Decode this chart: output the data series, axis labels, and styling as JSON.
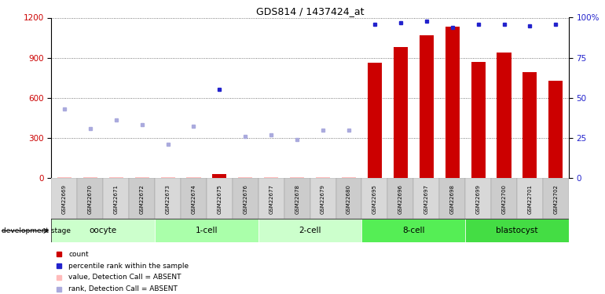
{
  "title": "GDS814 / 1437424_at",
  "samples": [
    "GSM22669",
    "GSM22670",
    "GSM22671",
    "GSM22672",
    "GSM22673",
    "GSM22674",
    "GSM22675",
    "GSM22676",
    "GSM22677",
    "GSM22678",
    "GSM22679",
    "GSM22680",
    "GSM22695",
    "GSM22696",
    "GSM22697",
    "GSM22698",
    "GSM22699",
    "GSM22700",
    "GSM22701",
    "GSM22702"
  ],
  "count_values": [
    5,
    5,
    5,
    5,
    5,
    5,
    30,
    5,
    5,
    5,
    5,
    5,
    860,
    980,
    1070,
    1130,
    870,
    940,
    790,
    730
  ],
  "count_absent": [
    true,
    true,
    true,
    true,
    true,
    true,
    false,
    true,
    true,
    true,
    true,
    true,
    false,
    false,
    false,
    false,
    false,
    false,
    false,
    false
  ],
  "rank_values": [
    43,
    31,
    36,
    33,
    21,
    32,
    55,
    26,
    27,
    24,
    30,
    30,
    96,
    97,
    98,
    94,
    96,
    96,
    95,
    96
  ],
  "rank_absent": [
    true,
    true,
    true,
    true,
    true,
    true,
    false,
    true,
    true,
    true,
    true,
    true,
    false,
    false,
    false,
    false,
    false,
    false,
    false,
    false
  ],
  "stages": [
    {
      "label": "oocyte",
      "start": 0,
      "end": 4,
      "color": "#ccffcc"
    },
    {
      "label": "1-cell",
      "start": 4,
      "end": 8,
      "color": "#aaffaa"
    },
    {
      "label": "2-cell",
      "start": 8,
      "end": 12,
      "color": "#ccffcc"
    },
    {
      "label": "8-cell",
      "start": 12,
      "end": 16,
      "color": "#55ee55"
    },
    {
      "label": "blastocyst",
      "start": 16,
      "end": 20,
      "color": "#44dd44"
    }
  ],
  "bar_color_present": "#cc0000",
  "bar_color_absent": "#ffbbbb",
  "dot_color_present": "#2222cc",
  "dot_color_absent": "#aaaadd",
  "ylim_left": [
    0,
    1200
  ],
  "ylim_right": [
    0,
    100
  ],
  "yticks_left": [
    0,
    300,
    600,
    900,
    1200
  ],
  "yticks_right": [
    0,
    25,
    50,
    75,
    100
  ],
  "bg_color": "#ffffff",
  "grid_color": "#555555",
  "label_bg": "#cccccc"
}
